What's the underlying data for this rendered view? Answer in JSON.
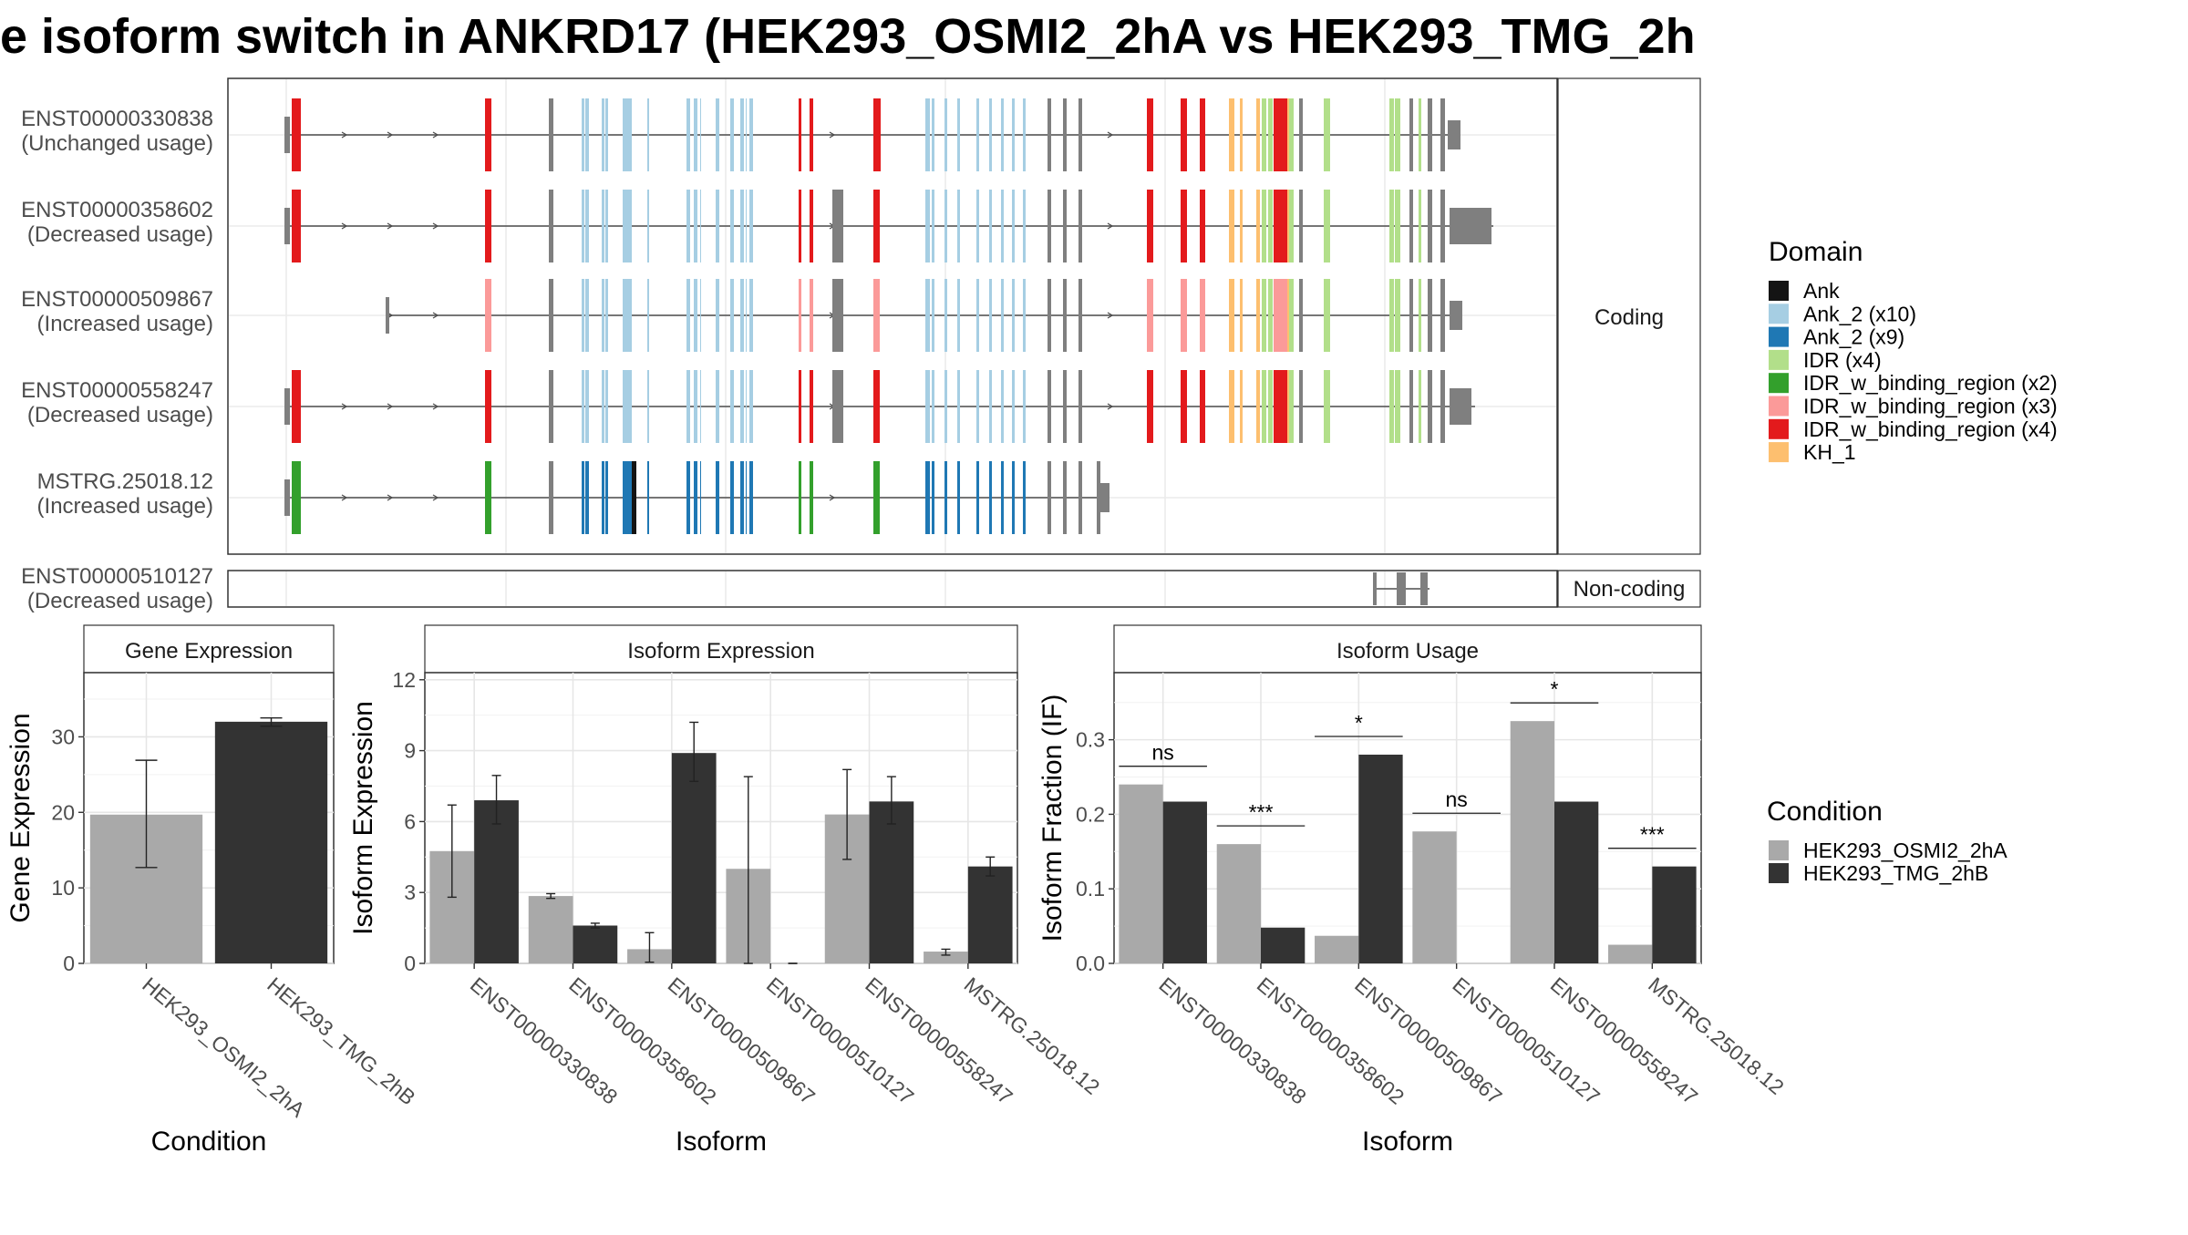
{
  "title": "e isoform switch in ANKRD17 (HEK293_OSMI2_2hA vs HEK293_TMG_2h",
  "structure": {
    "coding_strip_label": "Coding",
    "noncoding_strip_label": "Non-coding",
    "coding_isoforms": [
      {
        "id": "ENST00000330838",
        "usage": "(Unchanged usage)",
        "kind": "full"
      },
      {
        "id": "ENST00000358602",
        "usage": "(Decreased usage)",
        "kind": "full_long3"
      },
      {
        "id": "ENST00000509867",
        "usage": "(Increased usage)",
        "kind": "alt_start"
      },
      {
        "id": "ENST00000558247",
        "usage": "(Decreased usage)",
        "kind": "full_mid3"
      },
      {
        "id": "MSTRG.25018.12",
        "usage": "(Increased usage)",
        "kind": "short"
      }
    ],
    "noncoding_isoforms": [
      {
        "id": "ENST00000510127",
        "usage": "(Decreased usage)"
      }
    ]
  },
  "domain_legend": {
    "title": "Domain",
    "items": [
      {
        "label": "Ank",
        "color": "#141414"
      },
      {
        "label": "Ank_2 (x10)",
        "color": "#a6cee3"
      },
      {
        "label": "Ank_2 (x9)",
        "color": "#1f78b4"
      },
      {
        "label": "IDR (x4)",
        "color": "#b2df8a"
      },
      {
        "label": "IDR_w_binding_region (x2)",
        "color": "#33a02c"
      },
      {
        "label": "IDR_w_binding_region (x3)",
        "color": "#fb9a99"
      },
      {
        "label": "IDR_w_binding_region (x4)",
        "color": "#e31a1c"
      },
      {
        "label": "KH_1",
        "color": "#fdbf6f"
      }
    ]
  },
  "condition_legend": {
    "title": "Condition",
    "items": [
      {
        "label": "HEK293_OSMI2_2hA",
        "color": "#a9a9a9"
      },
      {
        "label": "HEK293_TMG_2hB",
        "color": "#333333"
      }
    ]
  },
  "chart_data": [
    {
      "type": "bar",
      "panel": "Gene Expression",
      "xlabel": "Condition",
      "ylabel": "Gene Expression",
      "ylim": [
        0,
        38.5
      ],
      "yticks": [
        0,
        10,
        20,
        30
      ],
      "categories": [
        "HEK293_OSMI2_2hA",
        "HEK293_TMG_2hB"
      ],
      "values": [
        19.7,
        32.0
      ],
      "errors": [
        [
          12.7,
          26.9
        ],
        [
          31.4,
          32.5
        ]
      ],
      "colors": [
        "#a9a9a9",
        "#333333"
      ]
    },
    {
      "type": "bar",
      "panel": "Isoform Expression",
      "xlabel": "Isoform",
      "ylabel": "Isoform Expression",
      "ylim": [
        0,
        12.3
      ],
      "yticks": [
        0,
        3,
        6,
        9,
        12
      ],
      "categories": [
        "ENST00000330838",
        "ENST00000358602",
        "ENST00000509867",
        "ENST00000510127",
        "ENST00000558247",
        "MSTRG.25018.12"
      ],
      "series": [
        {
          "name": "HEK293_OSMI2_2hA",
          "color": "#a9a9a9",
          "values": [
            4.75,
            2.85,
            0.6,
            4.0,
            6.3,
            0.5
          ],
          "errors": [
            [
              2.8,
              6.7
            ],
            [
              2.75,
              2.95
            ],
            [
              0.05,
              1.3
            ],
            [
              0.0,
              7.9
            ],
            [
              4.4,
              8.2
            ],
            [
              0.35,
              0.6
            ]
          ]
        },
        {
          "name": "HEK293_TMG_2hB",
          "color": "#333333",
          "values": [
            6.9,
            1.6,
            8.9,
            0.0,
            6.85,
            4.1
          ],
          "errors": [
            [
              5.9,
              7.95
            ],
            [
              1.5,
              1.7
            ],
            [
              7.7,
              10.2
            ],
            [
              0.0,
              0.0
            ],
            [
              5.9,
              7.9
            ],
            [
              3.7,
              4.5
            ]
          ]
        }
      ]
    },
    {
      "type": "bar",
      "panel": "Isoform Usage",
      "xlabel": "Isoform",
      "ylabel": "Isoform Fraction (IF)",
      "ylim": [
        0,
        0.39
      ],
      "yticks": [
        0.0,
        0.1,
        0.2,
        0.3
      ],
      "ytick_labels": [
        "0.0",
        "0.1",
        "0.2",
        "0.3"
      ],
      "categories": [
        "ENST00000330838",
        "ENST00000358602",
        "ENST00000509867",
        "ENST00000510127",
        "ENST00000558247",
        "MSTRG.25018.12"
      ],
      "series": [
        {
          "name": "HEK293_OSMI2_2hA",
          "color": "#a9a9a9",
          "values": [
            0.24,
            0.16,
            0.037,
            0.177,
            0.325,
            0.025
          ]
        },
        {
          "name": "HEK293_TMG_2hB",
          "color": "#333333",
          "values": [
            0.217,
            0.048,
            0.28,
            0.0,
            0.217,
            0.13
          ]
        }
      ],
      "significance": [
        "ns",
        "***",
        "*",
        "ns",
        "*",
        "***"
      ]
    }
  ]
}
